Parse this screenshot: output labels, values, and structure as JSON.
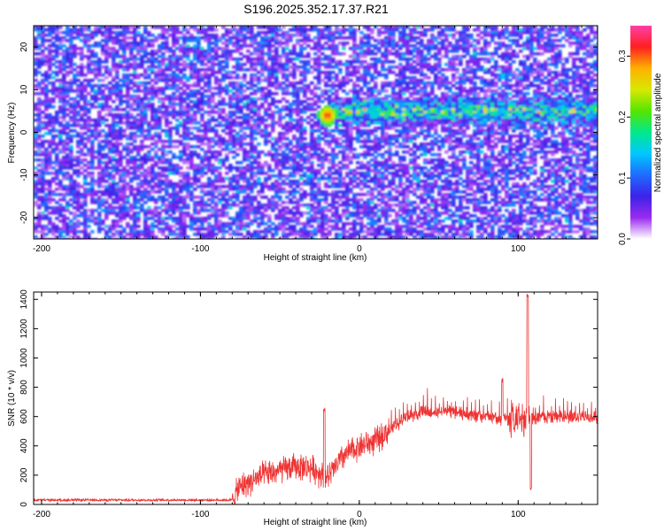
{
  "title": "S196.2025.352.17.37.R21",
  "colors": {
    "line": "#ee3333",
    "axis": "#000000",
    "colormap": [
      "#ffffff",
      "#9a2bf0",
      "#3c22e8",
      "#1f6bff",
      "#00c8ff",
      "#00e88c",
      "#55e600",
      "#d8e800",
      "#ffb000",
      "#ff2020",
      "#ff3fa8"
    ]
  },
  "chart_data": [
    {
      "type": "heatmap",
      "name": "spectrogram",
      "xlabel": "Height of straight line (km)",
      "ylabel": "Frequency (Hz)",
      "xlim": [
        -205,
        150
      ],
      "ylim": [
        -25,
        25
      ],
      "xticks": [
        -200,
        -100,
        0,
        100
      ],
      "xtick_labels": [
        "-200",
        "-100",
        "0",
        "100"
      ],
      "yticks": [
        -20,
        -10,
        0,
        10,
        20
      ],
      "ytick_labels": [
        "-20",
        "-10",
        "0",
        "10",
        "20"
      ],
      "signal_band_hz": 5,
      "signal_start_km": -20,
      "peak": {
        "x": -20,
        "y": 4,
        "amplitude": 0.33
      },
      "colorbar": {
        "label": "Normalized spectral amplitude",
        "range": [
          0,
          0.35
        ],
        "ticks": [
          0,
          0.1,
          0.2,
          0.3
        ],
        "tick_labels": [
          "0.0",
          "0.1",
          "0.2",
          "0.3"
        ]
      }
    },
    {
      "type": "line",
      "name": "snr",
      "xlabel": "Height of straight line (km)",
      "ylabel": "SNR (10 * v/v)",
      "xlim": [
        -205,
        150
      ],
      "ylim": [
        0,
        1450
      ],
      "xticks": [
        -200,
        -100,
        0,
        100
      ],
      "xtick_labels": [
        "-200",
        "-100",
        "0",
        "100"
      ],
      "yticks": [
        0,
        200,
        400,
        600,
        800,
        1000,
        1200,
        1400
      ],
      "ytick_labels": [
        "0",
        "200",
        "400",
        "600",
        "800",
        "1000",
        "1200",
        "1400"
      ],
      "baseline_points": [
        [
          -205,
          30
        ],
        [
          -80,
          30
        ],
        [
          -75,
          120
        ],
        [
          -60,
          200
        ],
        [
          -40,
          260
        ],
        [
          -30,
          250
        ],
        [
          -20,
          180
        ],
        [
          -10,
          330
        ],
        [
          0,
          400
        ],
        [
          10,
          430
        ],
        [
          20,
          520
        ],
        [
          30,
          600
        ],
        [
          40,
          630
        ],
        [
          60,
          630
        ],
        [
          80,
          600
        ],
        [
          95,
          580
        ],
        [
          100,
          570
        ],
        [
          110,
          600
        ],
        [
          130,
          600
        ],
        [
          150,
          600
        ]
      ],
      "features": [
        {
          "x": -22,
          "y": 660
        },
        {
          "x": 90,
          "y": 870
        },
        {
          "x": 106,
          "y": 1450
        },
        {
          "x": 108,
          "y": 100
        }
      ]
    }
  ]
}
